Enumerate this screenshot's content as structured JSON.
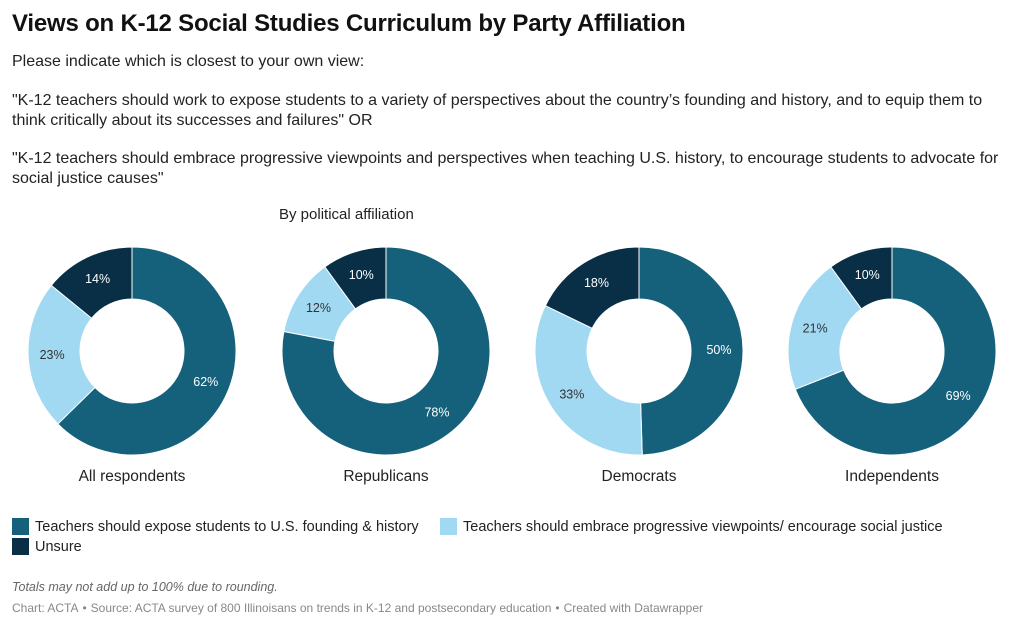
{
  "header": {
    "title": "Views on K-12 Social Studies Curriculum by Party Affiliation",
    "prompt": "Please indicate which is closest to your own view:",
    "option_a": "\"K-12 teachers should work to expose students to a variety of perspectives about the country’s founding and history, and to equip them to think critically about its successes and failures\" OR",
    "option_b": "\"K-12 teachers should embrace progressive viewpoints and perspectives when teaching U.S. history, to encourage students to advocate for social justice causes\"",
    "subtitle": "By political affiliation"
  },
  "chart_data": {
    "type": "pie",
    "donut": true,
    "slice_labels_unit": "%",
    "series_names": [
      "Teachers should expose students to U.S. founding & history",
      "Teachers should embrace progressive viewpoints/ encourage social justice",
      "Unsure"
    ],
    "colors": [
      "#15607a",
      "#a1d8f2",
      "#082f46"
    ],
    "label_colors": [
      "#ffffff",
      "#333333",
      "#ffffff"
    ],
    "charts": [
      {
        "label": "All respondents",
        "values": [
          62,
          23,
          14
        ]
      },
      {
        "label": "Republicans",
        "values": [
          78,
          12,
          10
        ]
      },
      {
        "label": "Democrats",
        "values": [
          50,
          33,
          18
        ]
      },
      {
        "label": "Independents",
        "values": [
          69,
          21,
          10
        ]
      }
    ]
  },
  "legend": {
    "item_0": "Teachers should expose students to U.S. founding & history",
    "item_1": "Teachers should embrace progressive viewpoints/ encourage social justice",
    "item_2": "Unsure"
  },
  "footer": {
    "note": "Totals may not add up to 100% due to rounding.",
    "credit_chart": "Chart: ACTA",
    "credit_source": "Source: ACTA survey of 800 Illinoisans on trends in K-12 and postsecondary education",
    "credit_tool": "Created with Datawrapper",
    "separator": "•"
  }
}
